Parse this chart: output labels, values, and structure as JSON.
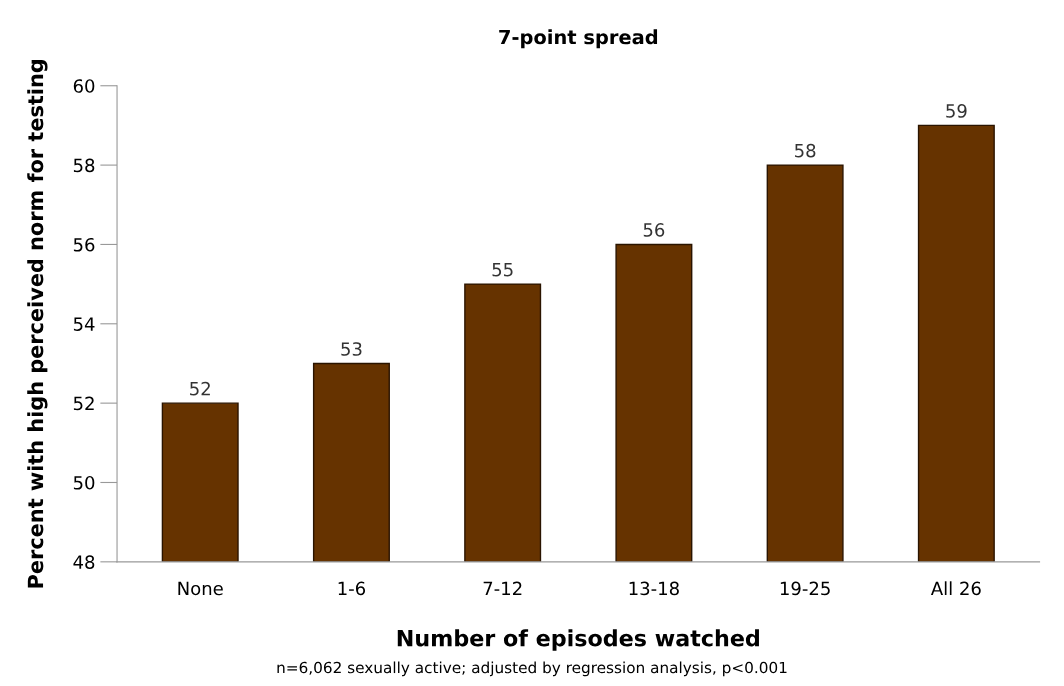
{
  "chart_data": {
    "type": "bar",
    "title": "7-point spread",
    "xlabel": "Number of episodes watched",
    "ylabel": "Percent with high perceived norm for testing",
    "categories": [
      "None",
      "1-6",
      "7-12",
      "13-18",
      "19-25",
      "All 26"
    ],
    "values": [
      52,
      53,
      55,
      56,
      58,
      59
    ],
    "color": "#663300",
    "ylim": [
      48,
      60
    ],
    "yticks": [
      48,
      50,
      52,
      54,
      56,
      58,
      60
    ],
    "data_labels": true,
    "grid": false,
    "legend": false,
    "annotations": [
      "n=6,062 sexually active; adjusted by regression analysis, p<0.001"
    ]
  }
}
